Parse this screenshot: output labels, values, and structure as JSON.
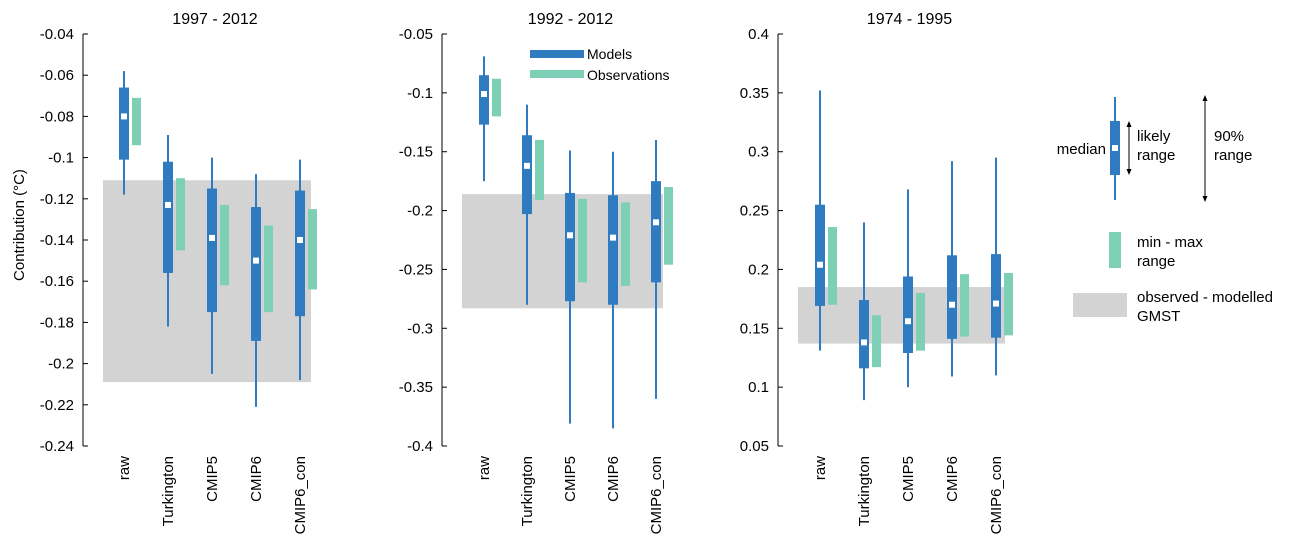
{
  "chart_data": [
    {
      "type": "box",
      "title": "1997 - 2012",
      "ylabel": "Contribution (°C)",
      "ylim": [
        -0.24,
        -0.04
      ],
      "yticks": [
        -0.04,
        -0.06,
        -0.08,
        -0.1,
        -0.12,
        -0.14,
        -0.16,
        -0.18,
        -0.2,
        -0.22,
        -0.24
      ],
      "categories": [
        "raw",
        "Turkington",
        "CMIP5",
        "CMIP6",
        "CMIP6_con"
      ],
      "band": [
        -0.111,
        -0.209
      ],
      "series": [
        {
          "name": "Models",
          "median": [
            -0.08,
            -0.123,
            -0.139,
            -0.15,
            -0.14
          ],
          "likely_low": [
            -0.101,
            -0.156,
            -0.175,
            -0.189,
            -0.177
          ],
          "likely_high": [
            -0.066,
            -0.102,
            -0.115,
            -0.124,
            -0.116
          ],
          "range_low": [
            -0.118,
            -0.182,
            -0.205,
            -0.221,
            -0.208
          ],
          "range_high": [
            -0.058,
            -0.089,
            -0.1,
            -0.108,
            -0.101
          ]
        },
        {
          "name": "Observations",
          "low": [
            -0.094,
            -0.145,
            -0.162,
            -0.175,
            -0.164
          ],
          "high": [
            -0.071,
            -0.11,
            -0.123,
            -0.133,
            -0.125
          ]
        }
      ]
    },
    {
      "type": "box",
      "title": "1992 - 2012",
      "ylabel": "",
      "ylim": [
        -0.4,
        -0.05
      ],
      "yticks": [
        -0.05,
        -0.1,
        -0.15,
        -0.2,
        -0.25,
        -0.3,
        -0.35,
        -0.4
      ],
      "categories": [
        "raw",
        "Turkington",
        "CMIP5",
        "CMIP6",
        "CMIP6_con"
      ],
      "band": [
        -0.186,
        -0.283
      ],
      "series": [
        {
          "name": "Models",
          "median": [
            -0.101,
            -0.162,
            -0.221,
            -0.223,
            -0.21
          ],
          "likely_low": [
            -0.127,
            -0.203,
            -0.277,
            -0.28,
            -0.261
          ],
          "likely_high": [
            -0.085,
            -0.136,
            -0.185,
            -0.187,
            -0.175
          ],
          "range_low": [
            -0.175,
            -0.28,
            -0.381,
            -0.385,
            -0.36
          ],
          "range_high": [
            -0.069,
            -0.11,
            -0.149,
            -0.15,
            -0.14
          ]
        },
        {
          "name": "Observations",
          "low": [
            -0.12,
            -0.191,
            -0.261,
            -0.264,
            -0.246
          ],
          "high": [
            -0.088,
            -0.14,
            -0.19,
            -0.193,
            -0.18
          ]
        }
      ]
    },
    {
      "type": "box",
      "title": "1974 - 1995",
      "ylabel": "",
      "ylim": [
        0.05,
        0.4
      ],
      "yticks": [
        0.4,
        0.35,
        0.3,
        0.25,
        0.2,
        0.15,
        0.1,
        0.05
      ],
      "categories": [
        "raw",
        "Turkington",
        "CMIP5",
        "CMIP6",
        "CMIP6_con"
      ],
      "band": [
        0.185,
        0.137
      ],
      "series": [
        {
          "name": "Models",
          "median": [
            0.204,
            0.138,
            0.156,
            0.17,
            0.171
          ],
          "likely_low": [
            0.169,
            0.116,
            0.129,
            0.141,
            0.142
          ],
          "likely_high": [
            0.255,
            0.174,
            0.194,
            0.212,
            0.213
          ],
          "range_low": [
            0.131,
            0.089,
            0.1,
            0.109,
            0.11
          ],
          "range_high": [
            0.352,
            0.24,
            0.268,
            0.292,
            0.295
          ]
        },
        {
          "name": "Observations",
          "low": [
            0.17,
            0.117,
            0.131,
            0.143,
            0.144
          ],
          "high": [
            0.236,
            0.161,
            0.18,
            0.196,
            0.197
          ]
        }
      ]
    }
  ],
  "legend": {
    "models": "Models",
    "observations": "Observations"
  },
  "key": {
    "median": "median",
    "likely_1": "likely",
    "likely_2": "range",
    "ninety_1": "90%",
    "ninety_2": "range",
    "minmax_1": "min - max",
    "minmax_2": "range",
    "band_1": "observed - modelled",
    "band_2": "GMST"
  },
  "colors": {
    "models": "#2f7bbf",
    "observations": "#7dd0b6",
    "band": "#d3d3d3",
    "median_marker": "#ffffff"
  }
}
